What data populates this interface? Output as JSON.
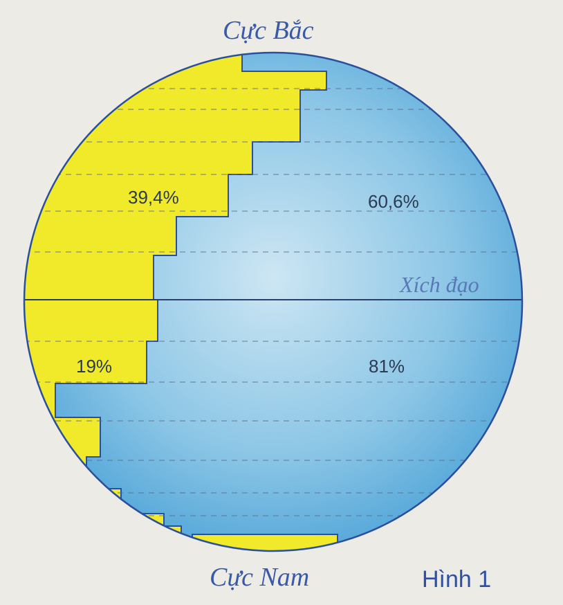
{
  "figure": {
    "north_pole_label": "Cực Bắc",
    "south_pole_label": "Cực Nam",
    "equator_label": "Xích đạo",
    "caption": "Hình 1"
  },
  "hemispheres": {
    "north": {
      "land_percent": "39,4%",
      "water_percent": "60,6%"
    },
    "south": {
      "land_percent": "19%",
      "water_percent": "81%"
    }
  },
  "colors": {
    "land": "#f0ea2a",
    "water": "#4aa6d8",
    "outline": "#2a4f9c",
    "text": "#2b3b52"
  }
}
